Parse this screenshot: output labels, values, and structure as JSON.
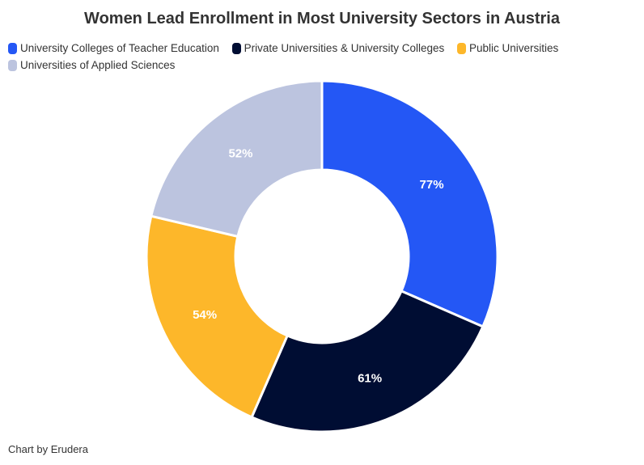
{
  "chart_data": {
    "type": "pie",
    "variant": "donut",
    "title": "Women Lead Enrollment in Most University Sectors in Austria",
    "legend_position": "top-left",
    "slices": [
      {
        "name": "University Colleges of Teacher Education",
        "value": 77,
        "label": "77%",
        "color": "#2457f5"
      },
      {
        "name": "Private Universities & University Colleges",
        "value": 61,
        "label": "61%",
        "color": "#000d33"
      },
      {
        "name": "Public Universities",
        "value": 54,
        "label": "54%",
        "color": "#fdb72a"
      },
      {
        "name": "Universities of Applied Sciences",
        "value": 52,
        "label": "52%",
        "color": "#bcc4df"
      }
    ]
  },
  "footer": {
    "source": "Chart by Erudera"
  }
}
